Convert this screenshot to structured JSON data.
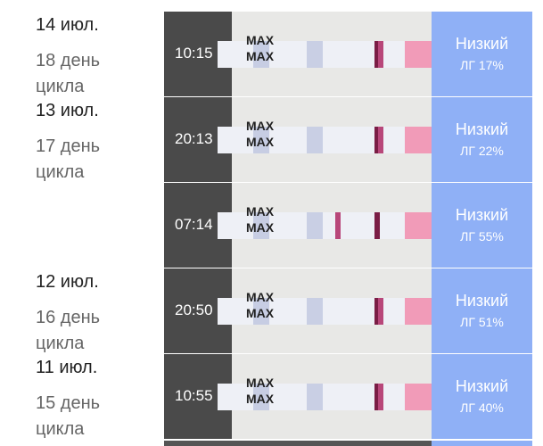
{
  "strip_label": "MAX",
  "days": [
    {
      "date": "14 июл.",
      "cycle_day": "18 день цикла",
      "tests": [
        {
          "time": "10:15",
          "result": "Низкий",
          "lh": "ЛГ 17%"
        }
      ]
    },
    {
      "date": "13 июл.",
      "cycle_day": "17 день цикла",
      "tests": [
        {
          "time": "20:13",
          "result": "Низкий",
          "lh": "ЛГ 22%"
        },
        {
          "time": "07:14",
          "result": "Низкий",
          "lh": "ЛГ 55%"
        }
      ]
    },
    {
      "date": "12 июл.",
      "cycle_day": "16 день цикла",
      "tests": [
        {
          "time": "20:50",
          "result": "Низкий",
          "lh": "ЛГ 51%"
        }
      ]
    },
    {
      "date": "11 июл.",
      "cycle_day": "15 день цикла",
      "tests": [
        {
          "time": "10:55",
          "result": "Низкий",
          "lh": "ЛГ 40%"
        }
      ]
    }
  ]
}
